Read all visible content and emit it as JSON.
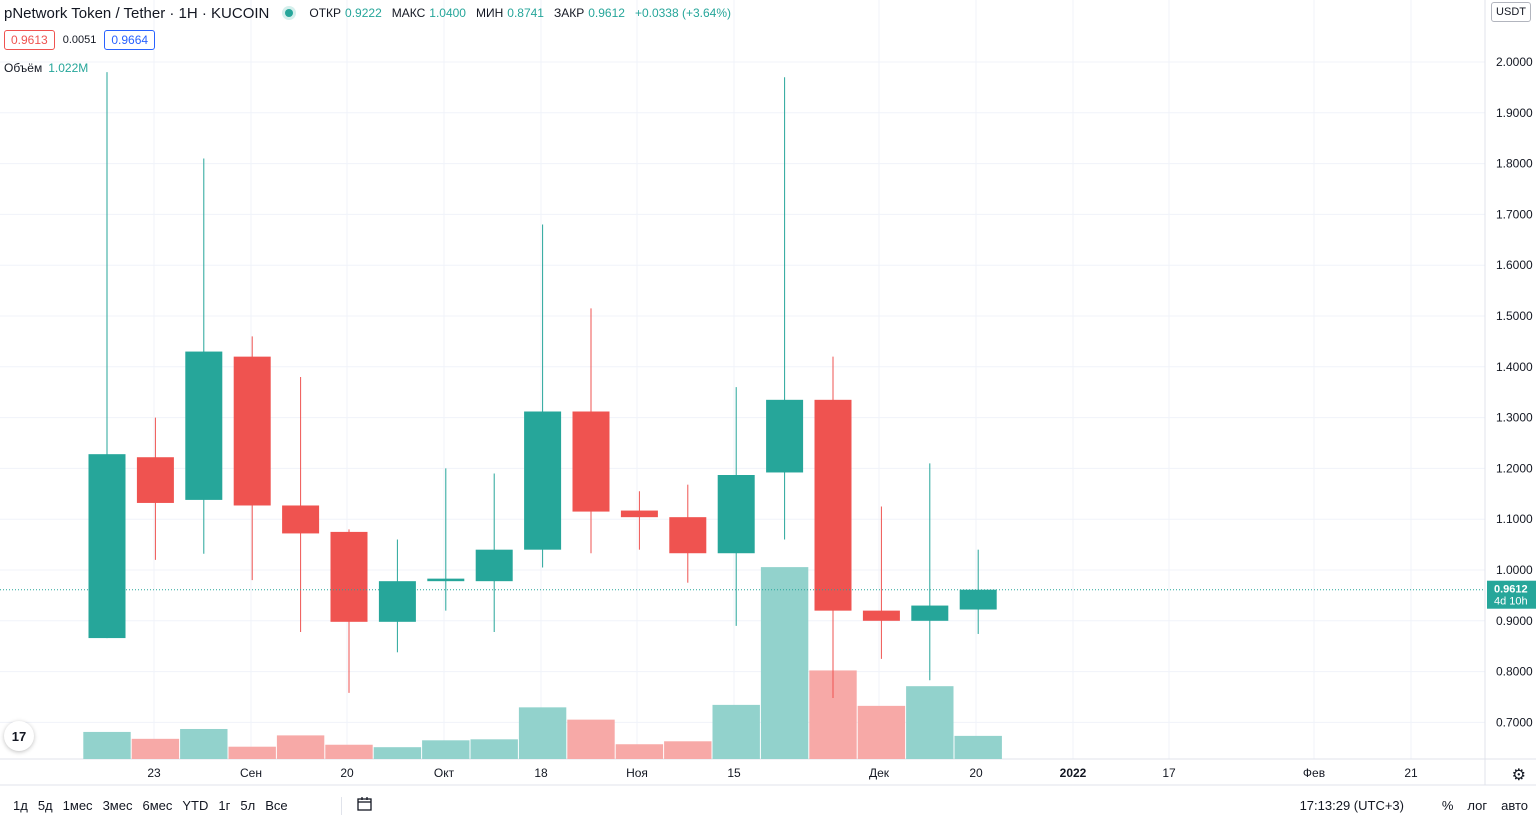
{
  "header": {
    "title": "pNetwork Token / Tether · 1H · KUCOIN",
    "ohlc": [
      {
        "k": "ОТКР",
        "v": "0.9222"
      },
      {
        "k": "МАКС",
        "v": "1.0400"
      },
      {
        "k": "МИН",
        "v": "0.8741"
      },
      {
        "k": "ЗАКР",
        "v": "0.9612"
      },
      {
        "k": "",
        "v": "+0.0338 (+3.64%)"
      }
    ],
    "sell_price": "0.9613",
    "spread": "0.0051",
    "buy_price": "0.9664",
    "volume_label": "Объём",
    "volume_value": "1.022M",
    "currency": "USDT"
  },
  "colors": {
    "up": "#26a69a",
    "down": "#ef5350",
    "up_vol": "#92d2cc",
    "down_vol": "#f7a9a7",
    "grid": "#f0f3fa"
  },
  "chart_data": {
    "type": "candlestick",
    "y_ticks": [
      0.7,
      0.8,
      0.9,
      1.0,
      1.1,
      1.2,
      1.3,
      1.4,
      1.5,
      1.6,
      1.7,
      1.8,
      1.9,
      2.0
    ],
    "y_tick_labels": [
      "0.7000",
      "0.8000",
      "0.9000",
      "1.0000",
      "1.1000",
      "1.2000",
      "1.3000",
      "1.4000",
      "1.5000",
      "1.6000",
      "1.7000",
      "1.8000",
      "1.9000",
      "2.0000"
    ],
    "ylim": [
      0.63,
      2.02
    ],
    "x_tick_labels": [
      "23",
      "Сен",
      "20",
      "Окт",
      "18",
      "Ноя",
      "15",
      "Дек",
      "20",
      "2022",
      "17",
      "Фев",
      "21"
    ],
    "last_price": "0.9612",
    "last_countdown": "4d 10h",
    "candles": [
      {
        "o": 0.866,
        "h": 1.98,
        "l": 0.866,
        "c": 1.228,
        "v": 0.055
      },
      {
        "o": 1.222,
        "h": 1.3,
        "l": 1.02,
        "c": 1.132,
        "v": 0.041
      },
      {
        "o": 1.138,
        "h": 1.81,
        "l": 1.032,
        "c": 1.43,
        "v": 0.061
      },
      {
        "o": 1.42,
        "h": 1.46,
        "l": 0.98,
        "c": 1.127,
        "v": 0.025
      },
      {
        "o": 1.127,
        "h": 1.38,
        "l": 0.878,
        "c": 1.072,
        "v": 0.048
      },
      {
        "o": 1.075,
        "h": 1.08,
        "l": 0.758,
        "c": 0.898,
        "v": 0.029
      },
      {
        "o": 0.898,
        "h": 1.06,
        "l": 0.838,
        "c": 0.978,
        "v": 0.024
      },
      {
        "o": 0.978,
        "h": 1.2,
        "l": 0.92,
        "c": 0.983,
        "v": 0.038
      },
      {
        "o": 0.978,
        "h": 1.19,
        "l": 0.878,
        "c": 1.04,
        "v": 0.04
      },
      {
        "o": 1.04,
        "h": 1.68,
        "l": 1.005,
        "c": 1.312,
        "v": 0.105
      },
      {
        "o": 1.312,
        "h": 1.515,
        "l": 1.033,
        "c": 1.115,
        "v": 0.08
      },
      {
        "o": 1.117,
        "h": 1.155,
        "l": 1.04,
        "c": 1.104,
        "v": 0.03
      },
      {
        "o": 1.104,
        "h": 1.168,
        "l": 0.975,
        "c": 1.033,
        "v": 0.036
      },
      {
        "o": 1.033,
        "h": 1.36,
        "l": 0.89,
        "c": 1.187,
        "v": 0.11
      },
      {
        "o": 1.192,
        "h": 1.97,
        "l": 1.06,
        "c": 1.335,
        "v": 0.39
      },
      {
        "o": 1.335,
        "h": 1.42,
        "l": 0.748,
        "c": 0.92,
        "v": 0.18
      },
      {
        "o": 0.92,
        "h": 1.125,
        "l": 0.825,
        "c": 0.9,
        "v": 0.108
      },
      {
        "o": 0.9,
        "h": 1.21,
        "l": 0.783,
        "c": 0.93,
        "v": 0.148
      },
      {
        "o": 0.9222,
        "h": 1.04,
        "l": 0.8741,
        "c": 0.9612,
        "v": 0.047
      }
    ]
  },
  "bottom": {
    "ranges": [
      "1д",
      "5д",
      "1мес",
      "3мес",
      "6мес",
      "YTD",
      "1г",
      "5л",
      "Все"
    ],
    "time": "17:13:29 (UTC+3)",
    "opts": [
      "%",
      "лог",
      "авто"
    ]
  }
}
